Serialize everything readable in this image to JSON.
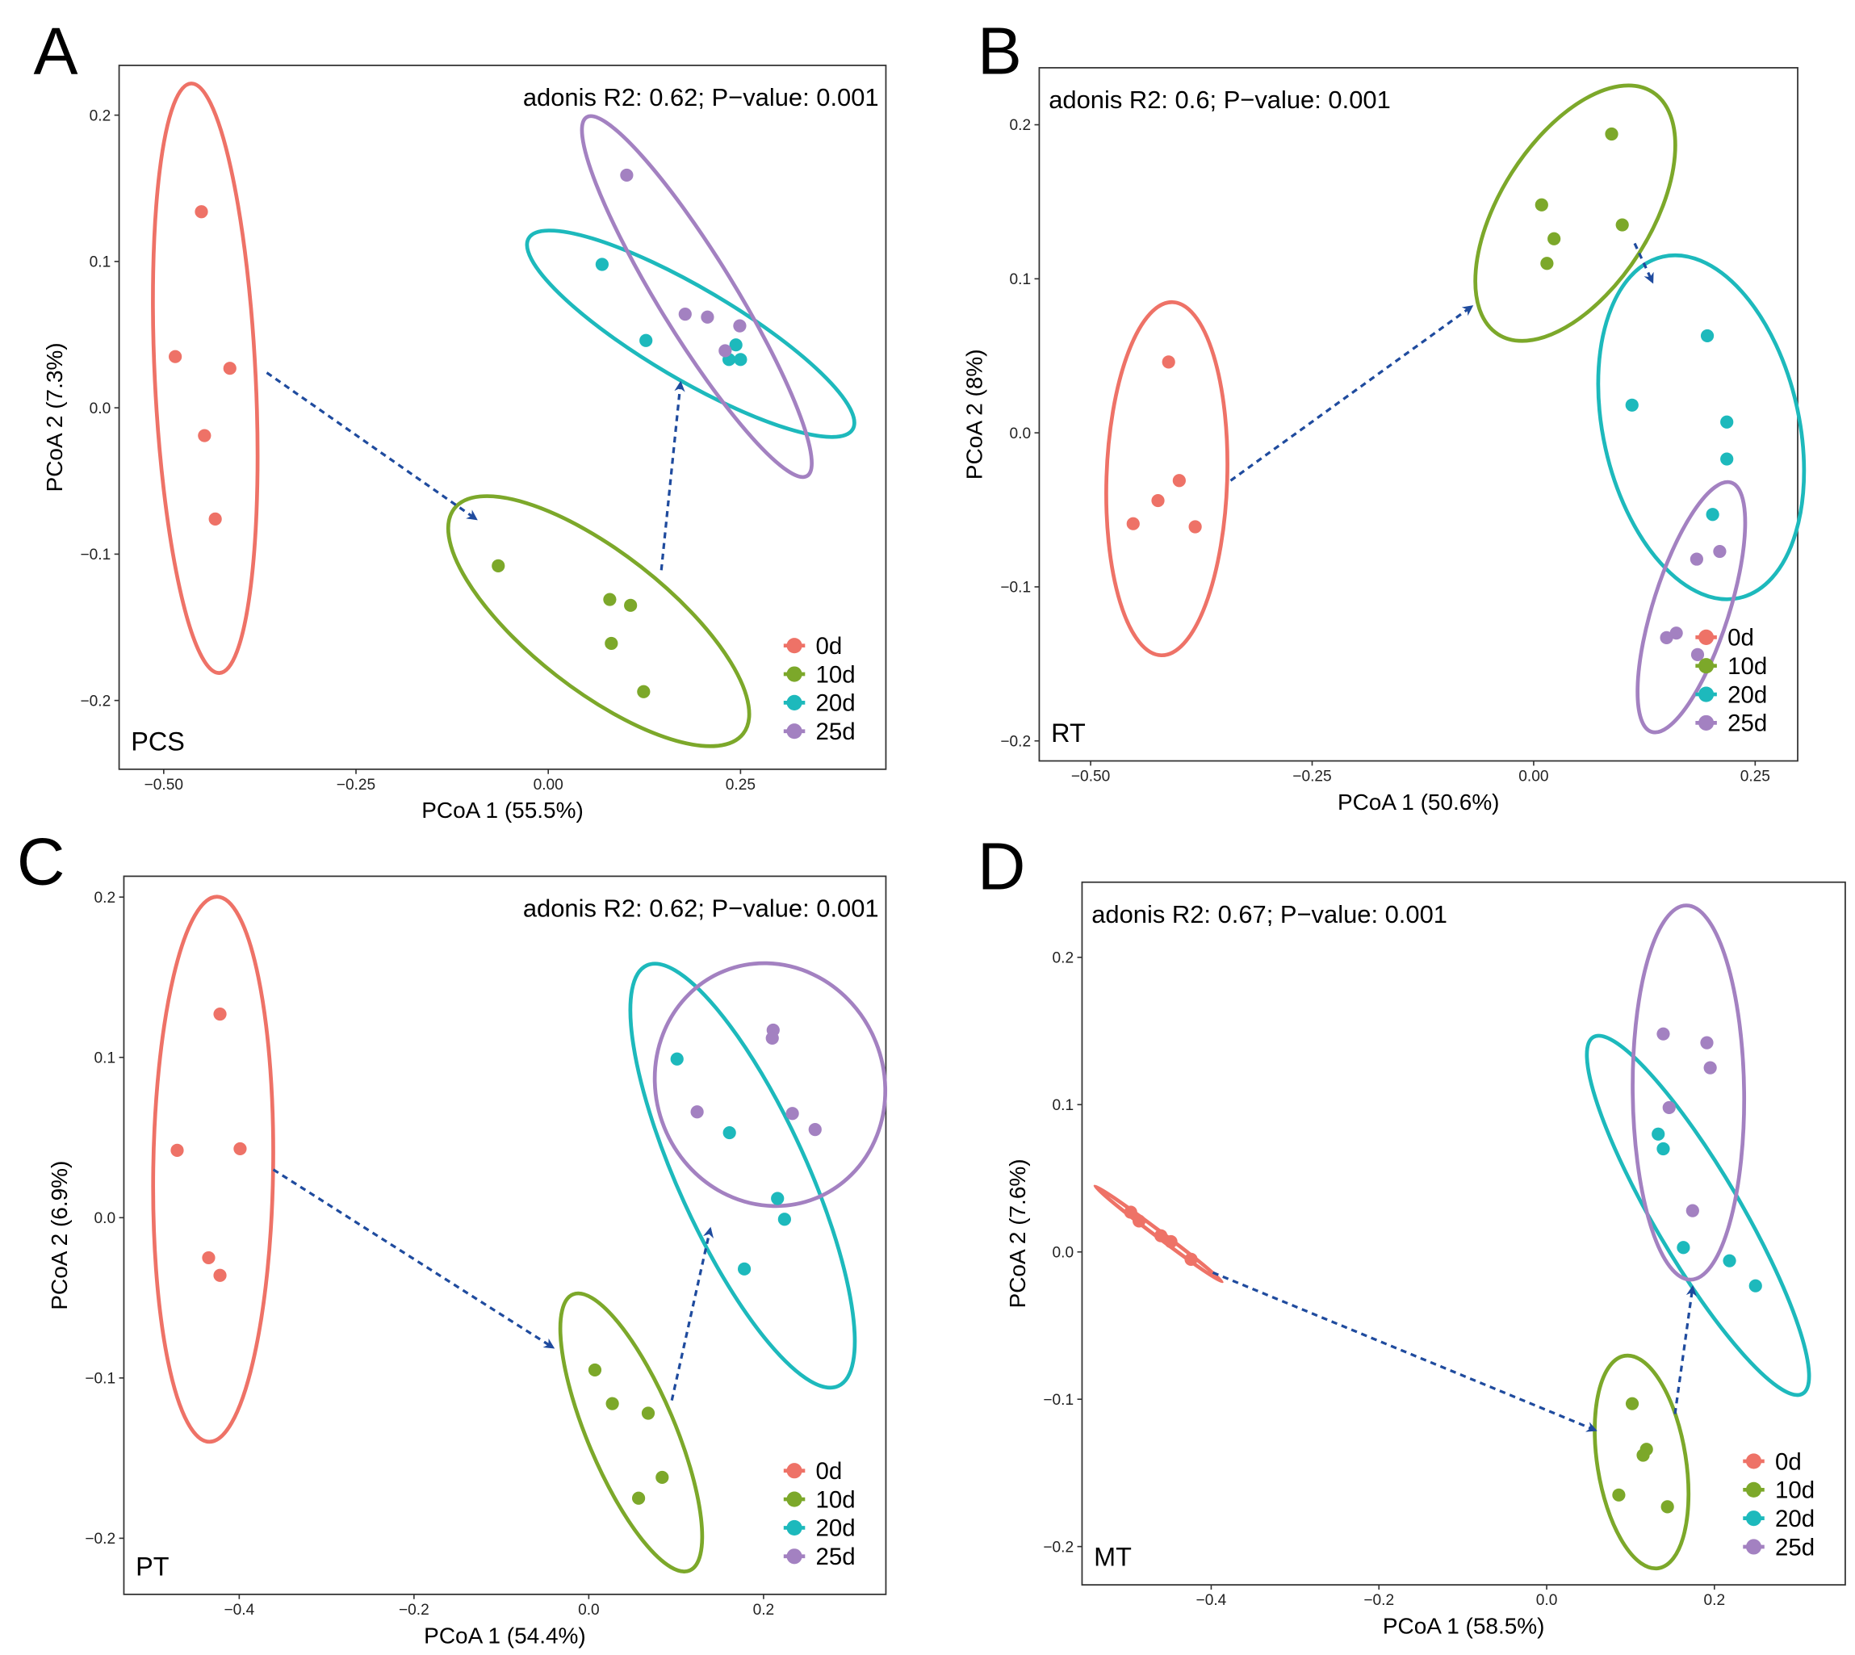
{
  "colors": {
    "0d": "#EE7267",
    "10d": "#7CA82A",
    "20d": "#1DB9BC",
    "25d": "#A381C1",
    "arrow": "#1F4B9E",
    "axis": "#333333"
  },
  "chart_data": [
    {
      "type": "scatter",
      "panel": "A",
      "site": "PCS",
      "annotation": "adonis R2: 0.62; P−value: 0.001",
      "xlabel": "PCoA 1 (55.5%)",
      "ylabel": "PCoA 2 (7.3%)",
      "xlim": [
        -0.558,
        0.439
      ],
      "ylim": [
        -0.247,
        0.234
      ],
      "xticks": [
        -0.5,
        -0.25,
        0,
        0.25
      ],
      "xtick_labels": [
        "−0.50",
        "−0.25",
        "0.00",
        "0.25"
      ],
      "yticks": [
        -0.2,
        -0.1,
        0,
        0.1,
        0.2
      ],
      "ytick_labels": [
        "−0.2",
        "−0.1",
        "0.0",
        "0.1",
        "0.2"
      ],
      "legend": "bottom-right",
      "grid": false,
      "ellipses": "95% per group",
      "series": [
        {
          "name": "0d",
          "x": [
            -0.451,
            -0.485,
            -0.414,
            -0.447,
            -0.433
          ],
          "y": [
            0.134,
            0.035,
            0.027,
            -0.019,
            -0.076
          ]
        },
        {
          "name": "10d",
          "x": [
            -0.065,
            0.08,
            0.107,
            0.082,
            0.124
          ],
          "y": [
            -0.108,
            -0.131,
            -0.135,
            -0.161,
            -0.194
          ]
        },
        {
          "name": "20d",
          "x": [
            0.07,
            0.127,
            0.244,
            0.235,
            0.25
          ],
          "y": [
            0.098,
            0.046,
            0.043,
            0.033,
            0.033
          ]
        },
        {
          "name": "25d",
          "x": [
            0.102,
            0.178,
            0.207,
            0.249,
            0.23
          ],
          "y": [
            0.159,
            0.064,
            0.062,
            0.056,
            0.039
          ]
        }
      ],
      "arrows": [
        {
          "from": [
            -0.366,
            0.024
          ],
          "to": [
            -0.094,
            -0.076
          ]
        },
        {
          "from": [
            0.147,
            -0.111
          ],
          "to": [
            0.172,
            0.017
          ]
        }
      ]
    },
    {
      "type": "scatter",
      "panel": "B",
      "site": "RT",
      "annotation": "adonis R2: 0.6; P−value: 0.001",
      "xlabel": "PCoA 1 (50.6%)",
      "ylabel": "PCoA 2 (8%)",
      "xlim": [
        -0.558,
        0.298
      ],
      "ylim": [
        -0.213,
        0.237
      ],
      "xticks": [
        -0.5,
        -0.25,
        0,
        0.25
      ],
      "xtick_labels": [
        "−0.50",
        "−0.25",
        "0.00",
        "0.25"
      ],
      "yticks": [
        -0.2,
        -0.1,
        0,
        0.1,
        0.2
      ],
      "ytick_labels": [
        "−0.2",
        "−0.1",
        "0.0",
        "0.1",
        "0.2"
      ],
      "legend": "bottom-right",
      "grid": false,
      "ellipses": "95% per group",
      "series": [
        {
          "name": "0d",
          "x": [
            -0.412,
            -0.424,
            -0.4,
            -0.452,
            -0.382
          ],
          "y": [
            0.046,
            -0.044,
            -0.031,
            -0.059,
            -0.061
          ]
        },
        {
          "name": "10d",
          "x": [
            0.088,
            0.009,
            0.023,
            0.015,
            0.1
          ],
          "y": [
            0.194,
            0.148,
            0.126,
            0.11,
            0.135
          ]
        },
        {
          "name": "20d",
          "x": [
            0.196,
            0.111,
            0.218,
            0.218,
            0.202
          ],
          "y": [
            0.063,
            0.018,
            0.007,
            -0.017,
            -0.053
          ]
        },
        {
          "name": "25d",
          "x": [
            0.184,
            0.21,
            0.161,
            0.15,
            0.185
          ],
          "y": [
            -0.082,
            -0.077,
            -0.13,
            -0.133,
            -0.144
          ]
        }
      ],
      "arrows": [
        {
          "from": [
            -0.342,
            -0.031
          ],
          "to": [
            -0.07,
            0.082
          ]
        },
        {
          "from": [
            0.114,
            0.123
          ],
          "to": [
            0.134,
            0.098
          ]
        }
      ]
    },
    {
      "type": "scatter",
      "panel": "C",
      "site": "PT",
      "annotation": "adonis R2: 0.62; P−value: 0.001",
      "xlabel": "PCoA 1 (54.4%)",
      "ylabel": "PCoA 2 (6.9%)",
      "xlim": [
        -0.532,
        0.34
      ],
      "ylim": [
        -0.235,
        0.213
      ],
      "xticks": [
        -0.4,
        -0.2,
        0,
        0.2
      ],
      "xtick_labels": [
        "−0.4",
        "−0.2",
        "0.0",
        "0.2"
      ],
      "yticks": [
        -0.2,
        -0.1,
        0,
        0.1,
        0.2
      ],
      "ytick_labels": [
        "−0.2",
        "−0.1",
        "0.0",
        "0.1",
        "0.2"
      ],
      "legend": "bottom-right",
      "grid": false,
      "ellipses": "95% per group",
      "series": [
        {
          "name": "0d",
          "x": [
            -0.422,
            -0.471,
            -0.399,
            -0.435,
            -0.422
          ],
          "y": [
            0.127,
            0.042,
            0.043,
            -0.025,
            -0.036
          ]
        },
        {
          "name": "10d",
          "x": [
            0.007,
            0.027,
            0.068,
            0.084,
            0.057
          ],
          "y": [
            -0.095,
            -0.116,
            -0.122,
            -0.162,
            -0.175
          ]
        },
        {
          "name": "20d",
          "x": [
            0.101,
            0.161,
            0.216,
            0.224,
            0.178
          ],
          "y": [
            0.099,
            0.053,
            0.012,
            -0.001,
            -0.032
          ]
        },
        {
          "name": "25d",
          "x": [
            0.211,
            0.21,
            0.124,
            0.233,
            0.259
          ],
          "y": [
            0.117,
            0.112,
            0.066,
            0.065,
            0.055
          ]
        }
      ],
      "arrows": [
        {
          "from": [
            -0.361,
            0.03
          ],
          "to": [
            -0.041,
            -0.081
          ]
        },
        {
          "from": [
            0.095,
            -0.114
          ],
          "to": [
            0.139,
            -0.007
          ]
        }
      ]
    },
    {
      "type": "scatter",
      "panel": "D",
      "site": "MT",
      "annotation": "adonis R2: 0.67; P−value: 0.001",
      "xlabel": "PCoA 1 (58.5%)",
      "ylabel": "PCoA 2 (7.6%)",
      "xlim": [
        -0.554,
        0.356
      ],
      "ylim": [
        -0.226,
        0.251
      ],
      "xticks": [
        -0.4,
        -0.2,
        0,
        0.2
      ],
      "xtick_labels": [
        "−0.4",
        "−0.2",
        "0.0",
        "0.2"
      ],
      "yticks": [
        -0.2,
        -0.1,
        0,
        0.1,
        0.2
      ],
      "ytick_labels": [
        "−0.2",
        "−0.1",
        "0.0",
        "0.1",
        "0.2"
      ],
      "legend": "bottom-right",
      "grid": false,
      "ellipses": "95% per group",
      "series": [
        {
          "name": "0d",
          "x": [
            -0.496,
            -0.486,
            -0.46,
            -0.448,
            -0.424
          ],
          "y": [
            0.027,
            0.021,
            0.011,
            0.007,
            -0.005
          ]
        },
        {
          "name": "10d",
          "x": [
            0.102,
            0.119,
            0.115,
            0.086,
            0.144
          ],
          "y": [
            -0.103,
            -0.134,
            -0.138,
            -0.165,
            -0.173
          ]
        },
        {
          "name": "20d",
          "x": [
            0.133,
            0.139,
            0.163,
            0.218,
            0.249
          ],
          "y": [
            0.08,
            0.07,
            0.003,
            -0.006,
            -0.023
          ]
        },
        {
          "name": "25d",
          "x": [
            0.139,
            0.191,
            0.195,
            0.146,
            0.174
          ],
          "y": [
            0.148,
            0.142,
            0.125,
            0.098,
            0.028
          ]
        }
      ],
      "arrows": [
        {
          "from": [
            -0.398,
            -0.014
          ],
          "to": [
            0.058,
            -0.121
          ]
        },
        {
          "from": [
            0.153,
            -0.11
          ],
          "to": [
            0.174,
            -0.024
          ]
        }
      ]
    }
  ]
}
